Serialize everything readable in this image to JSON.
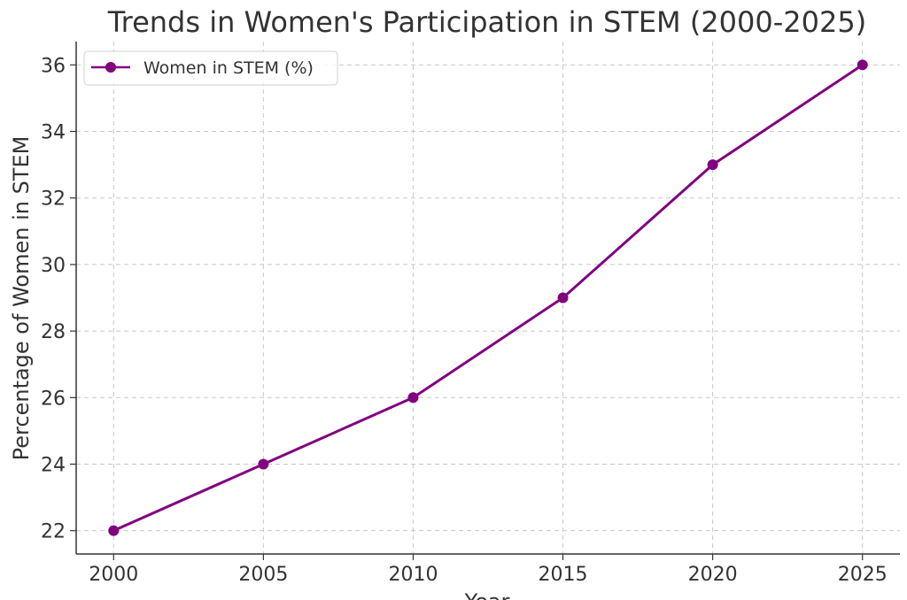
{
  "chart_data": {
    "type": "line",
    "title": "Trends in Women's Participation in STEM (2000-2025)",
    "xlabel": "Year",
    "ylabel": "Percentage of Women in STEM",
    "x": [
      2000,
      2005,
      2010,
      2015,
      2020,
      2025
    ],
    "series": [
      {
        "name": "Women in STEM (%)",
        "values": [
          22,
          24,
          26,
          29,
          33,
          36
        ],
        "color": "#800080",
        "marker": "circle"
      }
    ],
    "xticks": [
      "2000",
      "2005",
      "2010",
      "2015",
      "2020",
      "2025"
    ],
    "yticks": [
      "22",
      "24",
      "26",
      "28",
      "30",
      "32",
      "34",
      "36"
    ],
    "xlim": [
      1998.75,
      2026.25
    ],
    "ylim": [
      21.3,
      36.7
    ],
    "grid": true,
    "legend_position": "top-left"
  }
}
